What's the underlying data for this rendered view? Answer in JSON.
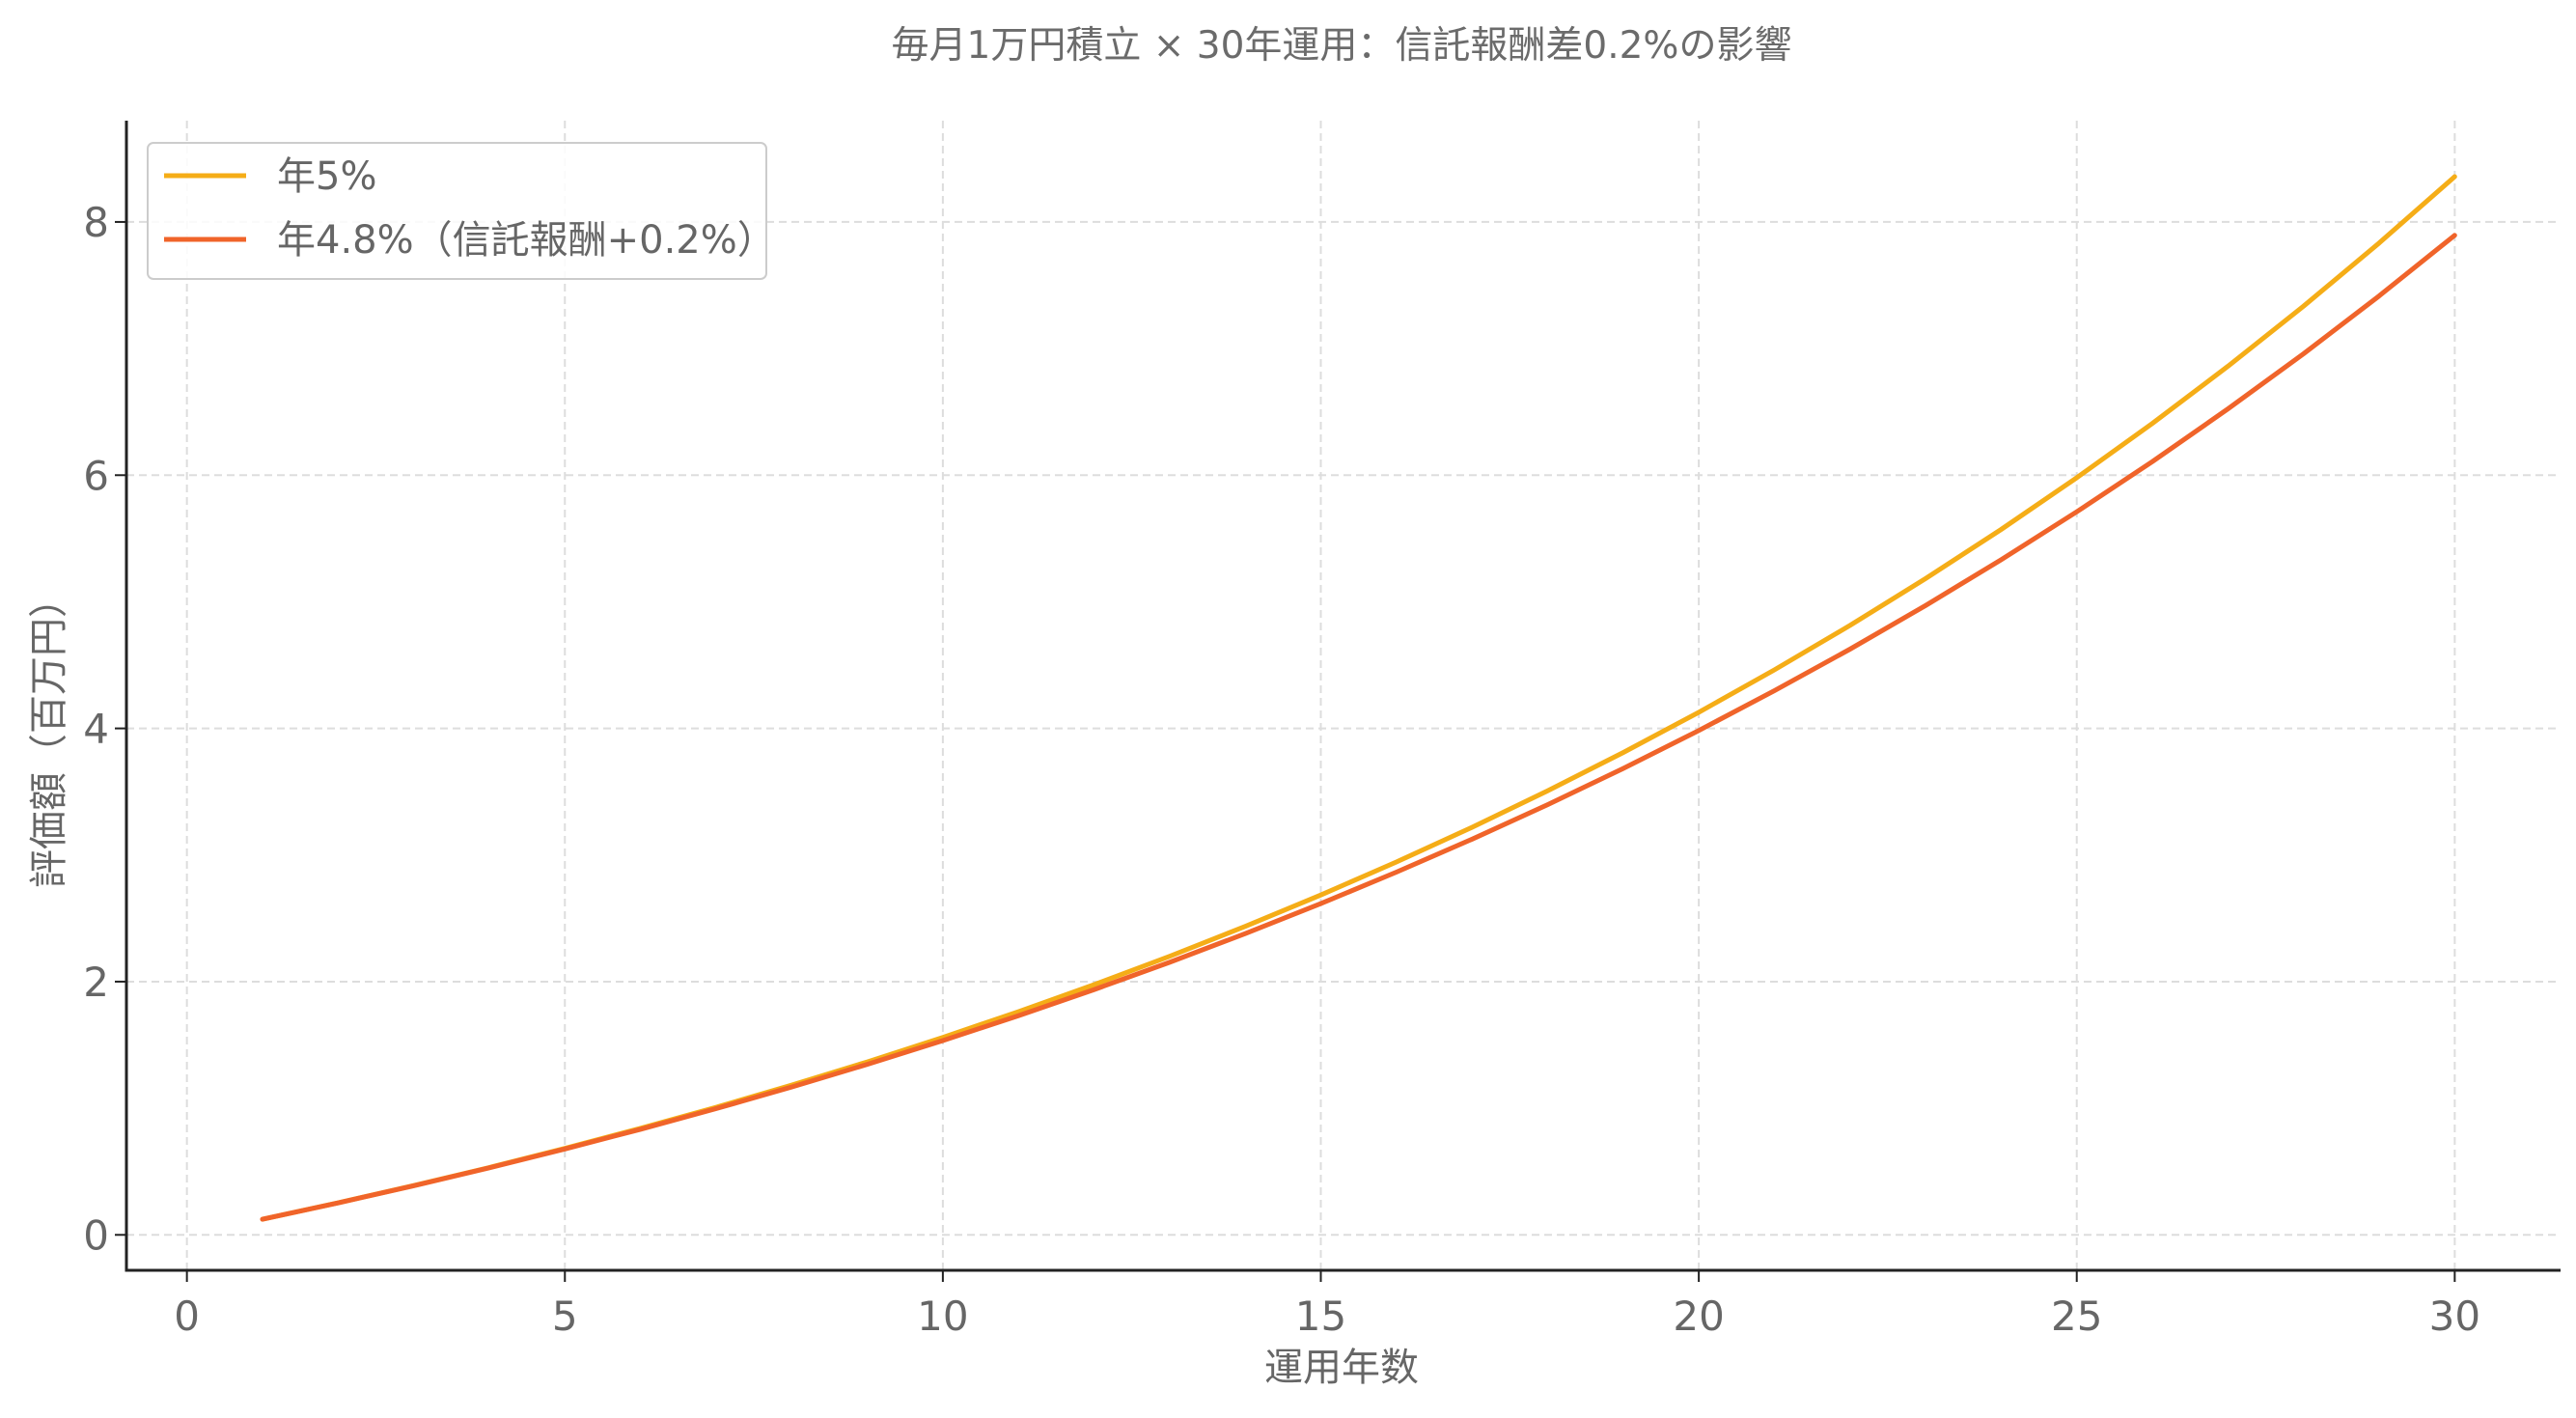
{
  "chart_data": {
    "type": "line",
    "title": "毎月1万円積立 × 30年運用：信託報酬差0.2%の影響",
    "xlabel": "運用年数",
    "ylabel": "評価額（百万円）",
    "xlim": [
      -0.8,
      31.4
    ],
    "ylim": [
      -0.28,
      8.8
    ],
    "x_ticks": [
      0,
      5,
      10,
      15,
      20,
      25,
      30
    ],
    "y_ticks": [
      0,
      2,
      4,
      6,
      8
    ],
    "grid": true,
    "legend_position": "top-left",
    "x": [
      1,
      2,
      3,
      4,
      5,
      6,
      7,
      8,
      9,
      10,
      11,
      12,
      13,
      14,
      15,
      16,
      17,
      18,
      19,
      20,
      21,
      22,
      23,
      24,
      25,
      26,
      27,
      28,
      29,
      30
    ],
    "series": [
      {
        "name": "年5%",
        "color": "#f5ad17",
        "values": [
          0.1233,
          0.2529,
          0.3891,
          0.5323,
          0.6829,
          0.8411,
          1.0075,
          1.1823,
          1.3661,
          1.5593,
          1.7624,
          1.9759,
          2.2003,
          2.4361,
          2.684,
          2.9446,
          3.2185,
          3.5065,
          3.8091,
          4.1275,
          4.4619,
          4.8135,
          5.1831,
          5.5716,
          5.9799,
          6.4092,
          6.8604,
          7.3348,
          7.8334,
          8.3576
        ]
      },
      {
        "name": "年4.8%（信託報酬+0.2%）",
        "color": "#f0642a",
        "values": [
          0.1232,
          0.2523,
          0.3876,
          0.5294,
          0.678,
          0.8336,
          0.9967,
          1.1676,
          1.3467,
          1.5343,
          1.7309,
          1.937,
          2.1529,
          2.3791,
          2.6162,
          2.8647,
          3.125,
          3.3978,
          3.6837,
          3.9833,
          4.2972,
          4.6262,
          4.9709,
          5.3322,
          5.7108,
          6.1076,
          6.5234,
          6.9591,
          7.4157,
          7.8942
        ]
      }
    ]
  }
}
